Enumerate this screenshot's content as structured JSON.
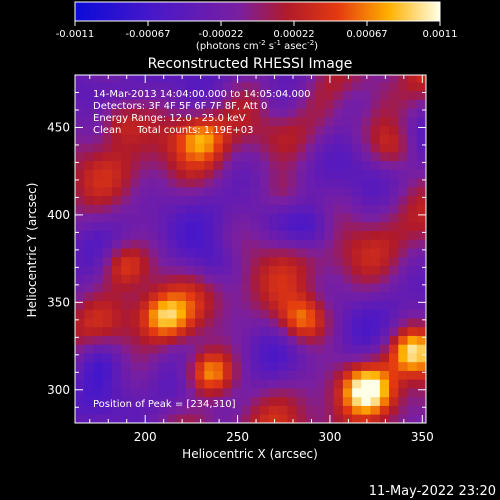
{
  "chart_data": {
    "type": "heatmap",
    "title": "Reconstructed RHESSI Image",
    "xlabel": "Heliocentric X (arcsec)",
    "ylabel": "Heliocentric Y (arcsec)",
    "xlim": [
      162,
      352
    ],
    "ylim": [
      281,
      480
    ],
    "x_ticks": [
      200,
      250,
      300,
      350
    ],
    "y_ticks": [
      300,
      350,
      400,
      450
    ],
    "colorbar": {
      "ticks": [
        "-0.0011",
        "-0.00067",
        "-0.00022",
        "0.00022",
        "0.00067",
        "0.0011"
      ],
      "unit": "(photons cm-2 s-1 asec-2)",
      "unit_parts": {
        "a": "(photons cm",
        "b": "-2",
        "c": " s",
        "d": "-1",
        "e": " asec",
        "f": "-2",
        "g": ")"
      },
      "range": [
        -0.0011,
        0.0011
      ]
    },
    "annotations": {
      "time_range": "14-Mar-2013 14:04:00.000 to 14:05:04.000",
      "detectors": "Detectors: 3F 4F 5F 6F 7F 8F, Att 0",
      "energy_range": "Energy Range: 12.0 - 25.0 keV",
      "method_counts": "Clean     Total counts: 1.19E+03",
      "peak": "Position of Peak = [234,310]"
    },
    "bright_sources": [
      {
        "x": 234,
        "y": 310,
        "peak": 0.0011
      },
      {
        "x": 285,
        "y": 340,
        "peak": 0.0009
      },
      {
        "x": 320,
        "y": 301,
        "peak": 0.00095
      },
      {
        "x": 345,
        "y": 322,
        "peak": 0.001
      },
      {
        "x": 210,
        "y": 342,
        "peak": 0.0008
      },
      {
        "x": 188,
        "y": 372,
        "peak": 0.0007
      },
      {
        "x": 185,
        "y": 455,
        "peak": 0.0006
      },
      {
        "x": 230,
        "y": 445,
        "peak": 0.0006
      },
      {
        "x": 275,
        "y": 412,
        "peak": 0.0005
      },
      {
        "x": 335,
        "y": 438,
        "peak": 0.0005
      }
    ],
    "dark_sources": [
      {
        "x": 290,
        "y": 392,
        "peak": -0.0005
      },
      {
        "x": 238,
        "y": 372,
        "peak": -0.0004
      },
      {
        "x": 175,
        "y": 318,
        "peak": -0.00045
      },
      {
        "x": 312,
        "y": 465,
        "peak": -0.0004
      },
      {
        "x": 272,
        "y": 463,
        "peak": -0.0003
      }
    ]
  },
  "footer": {
    "timestamp": "11-May-2022 23:20"
  }
}
